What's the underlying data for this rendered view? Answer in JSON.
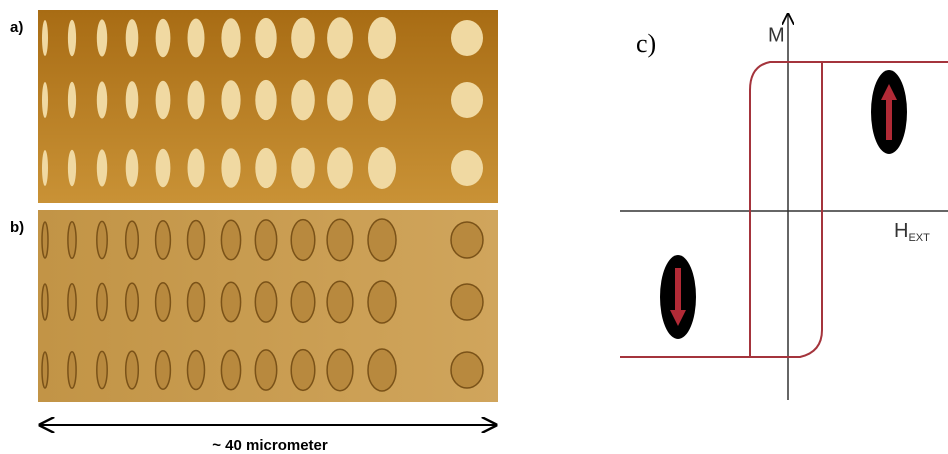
{
  "panel_a": {
    "label": "a)"
  },
  "panel_b": {
    "label": "b)"
  },
  "scale_bar": {
    "label": "~ 40 micrometer"
  },
  "panel_c": {
    "label": "c)",
    "y_axis_label": "M",
    "x_axis_label": "H",
    "x_axis_subscript": "EXT"
  }
}
